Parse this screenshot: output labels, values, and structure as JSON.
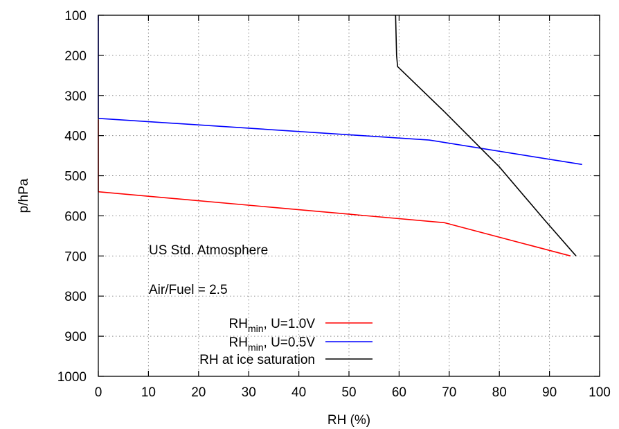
{
  "chart_data": {
    "type": "line",
    "xlabel": "RH (%)",
    "ylabel": "p/hPa",
    "xlim": [
      0,
      100
    ],
    "ylim": [
      1000,
      100
    ],
    "y_inverted": true,
    "xticks": [
      0,
      10,
      20,
      30,
      40,
      50,
      60,
      70,
      80,
      90,
      100
    ],
    "yticks": [
      100,
      200,
      300,
      400,
      500,
      600,
      700,
      800,
      900,
      1000
    ],
    "grid": true,
    "legend_position": "bottom-center",
    "annotations": [
      "US Std. Atmosphere",
      "Air/Fuel = 2.5"
    ],
    "series": [
      {
        "name_base": "RH",
        "name_sub": "min",
        "name_rest": ", U=1.0V",
        "color": "#ff0000",
        "points": [
          [
            0,
            540
          ],
          [
            69,
            617
          ],
          [
            94.2,
            700
          ]
        ],
        "left_edge_segment": [
          [
            0,
            360
          ],
          [
            0,
            540
          ]
        ]
      },
      {
        "name_base": "RH",
        "name_sub": "min",
        "name_rest": ", U=0.5V",
        "color": "#0000ff",
        "points": [
          [
            0,
            357
          ],
          [
            66,
            411
          ],
          [
            96.5,
            472
          ]
        ],
        "left_edge_segment": [
          [
            0,
            100
          ],
          [
            0,
            357
          ]
        ]
      },
      {
        "name": "RH at ice saturation",
        "color": "#000000",
        "points": [
          [
            59.3,
            100
          ],
          [
            59.5,
            200
          ],
          [
            59.7,
            228
          ],
          [
            69,
            340
          ],
          [
            80,
            478
          ],
          [
            89,
            610
          ],
          [
            95.3,
            700
          ]
        ]
      }
    ]
  }
}
